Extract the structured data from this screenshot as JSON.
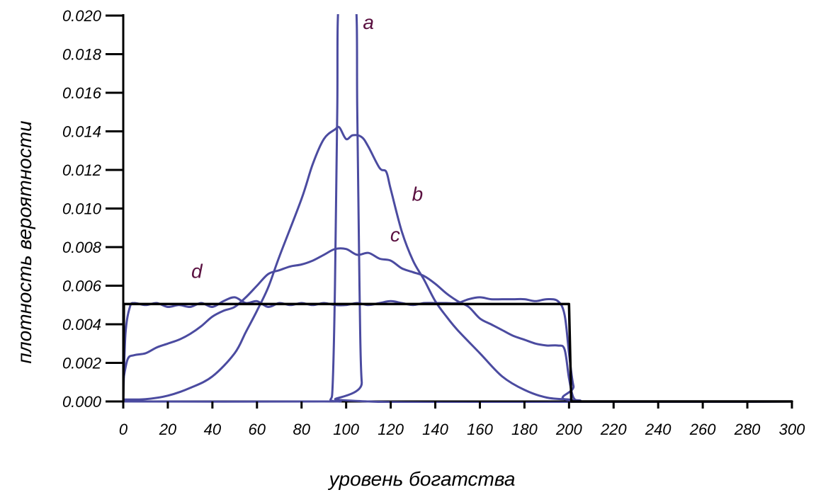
{
  "chart_data": {
    "type": "line",
    "xlabel": "уровень богатства",
    "ylabel": "плотность вероятности",
    "xlim": [
      0,
      300
    ],
    "ylim": [
      0,
      0.02
    ],
    "xticks": [
      "0",
      "20",
      "40",
      "60",
      "80",
      "100",
      "120",
      "140",
      "160",
      "180",
      "200",
      "220",
      "240",
      "260",
      "280",
      "300"
    ],
    "yticks": [
      "0.000",
      "0.002",
      "0.004",
      "0.006",
      "0.008",
      "0.010",
      "0.012",
      "0.014",
      "0.016",
      "0.018",
      "0.020"
    ],
    "grid": false,
    "legend": "none",
    "colors": {
      "curve": "#4b4ba0",
      "uniform": "#000000",
      "labels": "#5a1040",
      "axis": "#000000"
    },
    "series": [
      {
        "label": "a",
        "label_at": [
          110,
          0.0193
        ],
        "x": [
          0,
          90,
          93,
          94,
          95,
          96,
          97,
          104,
          105,
          106,
          107,
          110,
          300
        ],
        "y": [
          0,
          0,
          0.0001,
          0.001,
          0.006,
          0.015,
          0.021,
          0.021,
          0.015,
          0.006,
          0.001,
          0,
          0
        ]
      },
      {
        "label": "b",
        "label_at": [
          132,
          0.0104
        ],
        "x": [
          0,
          10,
          20,
          30,
          40,
          50,
          55,
          60,
          65,
          70,
          80,
          85,
          90,
          95,
          97,
          100,
          103,
          107,
          110,
          115,
          118,
          120,
          125,
          130,
          135,
          140,
          145,
          150,
          160,
          170,
          180,
          190,
          200,
          203,
          206,
          210,
          300
        ],
        "y": [
          0.0001,
          0.00012,
          0.0003,
          0.0007,
          0.0013,
          0.0025,
          0.0036,
          0.0047,
          0.0059,
          0.0075,
          0.0105,
          0.0123,
          0.0136,
          0.0141,
          0.0142,
          0.0136,
          0.0138,
          0.0137,
          0.0132,
          0.0121,
          0.0119,
          0.011,
          0.0088,
          0.0073,
          0.0063,
          0.0052,
          0.0044,
          0.0037,
          0.0025,
          0.0013,
          0.0006,
          0.0002,
          0.0001,
          5e-05,
          0,
          0,
          0
        ]
      },
      {
        "label": "c",
        "label_at": [
          122,
          0.0083
        ],
        "x": [
          0,
          2,
          5,
          10,
          15,
          20,
          25,
          30,
          35,
          40,
          45,
          50,
          55,
          60,
          65,
          70,
          75,
          80,
          85,
          90,
          95,
          100,
          105,
          110,
          115,
          120,
          125,
          130,
          135,
          140,
          145,
          150,
          155,
          160,
          165,
          170,
          175,
          180,
          185,
          190,
          195,
          198,
          200,
          202,
          205,
          210,
          300
        ],
        "y": [
          0.0011,
          0.0022,
          0.0024,
          0.0025,
          0.0028,
          0.003,
          0.0032,
          0.0035,
          0.0039,
          0.0044,
          0.0047,
          0.0049,
          0.0054,
          0.006,
          0.0066,
          0.0068,
          0.007,
          0.0071,
          0.0073,
          0.0076,
          0.0079,
          0.0079,
          0.0076,
          0.0077,
          0.0074,
          0.0073,
          0.0069,
          0.0067,
          0.0065,
          0.0061,
          0.0056,
          0.0052,
          0.0049,
          0.0043,
          0.004,
          0.0037,
          0.0034,
          0.0032,
          0.003,
          0.0029,
          0.0029,
          0.0027,
          0.0012,
          0.0002,
          5e-05,
          0,
          0
        ]
      },
      {
        "label": "",
        "x": [
          0,
          1,
          3,
          5,
          10,
          15,
          20,
          25,
          30,
          35,
          40,
          45,
          50,
          55,
          60,
          65,
          70,
          75,
          80,
          85,
          90,
          95,
          100,
          105,
          110,
          115,
          120,
          125,
          130,
          135,
          140,
          145,
          150,
          155,
          160,
          165,
          170,
          175,
          180,
          185,
          190,
          195,
          198,
          200,
          202,
          205,
          300
        ],
        "y": [
          0.0001,
          0.0035,
          0.0049,
          0.0051,
          0.005,
          0.0051,
          0.0049,
          0.005,
          0.0049,
          0.0051,
          0.0049,
          0.0052,
          0.0054,
          0.0051,
          0.0052,
          0.0049,
          0.0051,
          0.005,
          0.0051,
          0.005,
          0.0051,
          0.005,
          0.005,
          0.0051,
          0.005,
          0.0051,
          0.0052,
          0.0051,
          0.005,
          0.0051,
          0.0051,
          0.0051,
          0.0051,
          0.0053,
          0.0054,
          0.0053,
          0.0053,
          0.0053,
          0.0053,
          0.0052,
          0.0053,
          0.0052,
          0.0045,
          0.0025,
          0.0008,
          0,
          0
        ]
      },
      {
        "label": "d",
        "label_at": [
          33,
          0.0064
        ],
        "x": [
          0,
          0.3,
          197,
          200,
          201,
          300
        ],
        "y": [
          0,
          0.00505,
          0.00505,
          0.00505,
          0,
          0
        ]
      }
    ]
  }
}
